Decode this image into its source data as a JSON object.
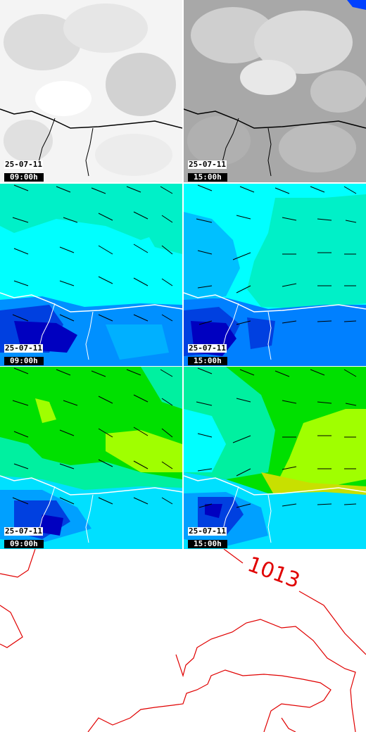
{
  "colors": {
    "cloud_light": "#ffffff",
    "cloud_dark": "#9a9a9a",
    "cyan": "#00ffff",
    "aqua_green": "#00f0a0",
    "green": "#00e000",
    "lime": "#a0ff00",
    "blue": "#0080ff",
    "mid_blue": "#0040e0",
    "dark_blue": "#0000c0",
    "isobar_red": "#e00000"
  },
  "panels": [
    {
      "row": "cloud",
      "date": "25-07-11",
      "time": "09:00h"
    },
    {
      "row": "cloud",
      "date": "25-07-11",
      "time": "15:00h"
    },
    {
      "row": "humidity",
      "date": "25-07-11",
      "time": "09:00h"
    },
    {
      "row": "humidity",
      "date": "25-07-11",
      "time": "15:00h"
    },
    {
      "row": "temperature",
      "date": "25-07-11",
      "time": "09:00h"
    },
    {
      "row": "temperature",
      "date": "25-07-11",
      "time": "15:00h"
    }
  ],
  "isobar": {
    "label": "1013"
  }
}
